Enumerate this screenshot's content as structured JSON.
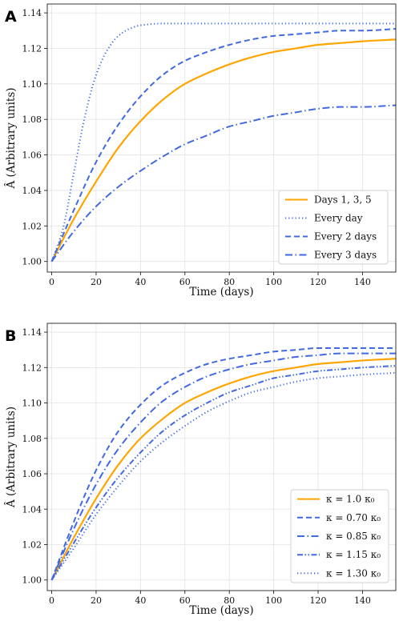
{
  "chart_data": [
    {
      "type": "line",
      "panel_label": "A",
      "xlabel": "Time (days)",
      "ylabel": "Â (Arbitrary units)",
      "xlim": [
        -2,
        155
      ],
      "ylim": [
        0.994,
        1.145
      ],
      "xticks": [
        0,
        20,
        40,
        60,
        80,
        100,
        120,
        140
      ],
      "yticks": [
        1.0,
        1.02,
        1.04,
        1.06,
        1.08,
        1.1,
        1.12,
        1.14
      ],
      "grid": true,
      "legend_position": "lower-right",
      "series": [
        {
          "name": "Days 1,  3,  5",
          "color": "#FFA500",
          "style": "solid",
          "x": [
            0,
            10,
            20,
            30,
            40,
            50,
            60,
            70,
            80,
            90,
            100,
            110,
            120,
            130,
            140,
            155
          ],
          "y": [
            1.0,
            1.024,
            1.045,
            1.064,
            1.079,
            1.091,
            1.1,
            1.106,
            1.111,
            1.115,
            1.118,
            1.12,
            1.122,
            1.123,
            1.124,
            1.125
          ]
        },
        {
          "name": "Every day",
          "color": "#4169E1",
          "style": "dotted",
          "x": [
            0,
            5,
            10,
            15,
            20,
            25,
            30,
            35,
            40,
            50,
            60,
            80,
            100,
            155
          ],
          "y": [
            1.0,
            1.018,
            1.05,
            1.082,
            1.105,
            1.119,
            1.127,
            1.131,
            1.133,
            1.134,
            1.134,
            1.134,
            1.134,
            1.134
          ]
        },
        {
          "name": "Every 2 days",
          "color": "#4169E1",
          "style": "dashed",
          "x": [
            0,
            10,
            20,
            30,
            40,
            50,
            60,
            70,
            80,
            90,
            100,
            110,
            120,
            130,
            140,
            155
          ],
          "y": [
            1.0,
            1.029,
            1.056,
            1.077,
            1.093,
            1.105,
            1.113,
            1.118,
            1.122,
            1.125,
            1.127,
            1.128,
            1.129,
            1.13,
            1.13,
            1.131
          ]
        },
        {
          "name": "Every 3 days",
          "color": "#4169E1",
          "style": "dashdot",
          "x": [
            0,
            10,
            20,
            30,
            40,
            50,
            60,
            70,
            80,
            90,
            100,
            110,
            120,
            130,
            140,
            155
          ],
          "y": [
            1.0,
            1.017,
            1.031,
            1.042,
            1.051,
            1.059,
            1.066,
            1.071,
            1.076,
            1.079,
            1.082,
            1.084,
            1.086,
            1.087,
            1.087,
            1.088
          ]
        }
      ]
    },
    {
      "type": "line",
      "panel_label": "B",
      "xlabel": "Time (days)",
      "ylabel": "Â (Arbitrary units)",
      "xlim": [
        -2,
        155
      ],
      "ylim": [
        0.994,
        1.145
      ],
      "xticks": [
        0,
        20,
        40,
        60,
        80,
        100,
        120,
        140
      ],
      "yticks": [
        1.0,
        1.02,
        1.04,
        1.06,
        1.08,
        1.1,
        1.12,
        1.14
      ],
      "grid": true,
      "legend_position": "lower-right",
      "series": [
        {
          "name": "κ = 1.0 κ₀",
          "color": "#FFA500",
          "style": "solid",
          "x": [
            0,
            10,
            20,
            30,
            40,
            50,
            60,
            70,
            80,
            90,
            100,
            110,
            120,
            130,
            140,
            155
          ],
          "y": [
            1.0,
            1.024,
            1.046,
            1.065,
            1.08,
            1.091,
            1.1,
            1.106,
            1.111,
            1.115,
            1.118,
            1.12,
            1.122,
            1.123,
            1.124,
            1.125
          ]
        },
        {
          "name": "κ = 0.70 κ₀",
          "color": "#4169E1",
          "style": "dashed",
          "x": [
            0,
            10,
            20,
            30,
            40,
            50,
            60,
            70,
            80,
            90,
            100,
            110,
            120,
            130,
            140,
            155
          ],
          "y": [
            1.0,
            1.033,
            1.062,
            1.084,
            1.099,
            1.11,
            1.117,
            1.122,
            1.125,
            1.127,
            1.129,
            1.13,
            1.131,
            1.131,
            1.131,
            1.131
          ]
        },
        {
          "name": "κ = 0.85 κ₀",
          "color": "#4169E1",
          "style": "dashdot",
          "x": [
            0,
            10,
            20,
            30,
            40,
            50,
            60,
            70,
            80,
            90,
            100,
            110,
            120,
            130,
            140,
            155
          ],
          "y": [
            1.0,
            1.029,
            1.054,
            1.074,
            1.089,
            1.101,
            1.109,
            1.115,
            1.119,
            1.122,
            1.124,
            1.126,
            1.127,
            1.128,
            1.128,
            1.128
          ]
        },
        {
          "name": "κ = 1.15 κ₀",
          "color": "#4169E1",
          "style": "dashdotdot",
          "x": [
            0,
            10,
            20,
            30,
            40,
            50,
            60,
            70,
            80,
            90,
            100,
            110,
            120,
            130,
            140,
            155
          ],
          "y": [
            1.0,
            1.021,
            1.041,
            1.058,
            1.072,
            1.084,
            1.093,
            1.1,
            1.106,
            1.11,
            1.114,
            1.116,
            1.118,
            1.119,
            1.12,
            1.121
          ]
        },
        {
          "name": "κ = 1.30 κ₀",
          "color": "#4169E1",
          "style": "dotted",
          "x": [
            0,
            10,
            20,
            30,
            40,
            50,
            60,
            70,
            80,
            90,
            100,
            110,
            120,
            130,
            140,
            155
          ],
          "y": [
            1.0,
            1.018,
            1.037,
            1.053,
            1.067,
            1.078,
            1.087,
            1.095,
            1.101,
            1.106,
            1.109,
            1.112,
            1.114,
            1.115,
            1.116,
            1.117
          ]
        }
      ]
    }
  ]
}
